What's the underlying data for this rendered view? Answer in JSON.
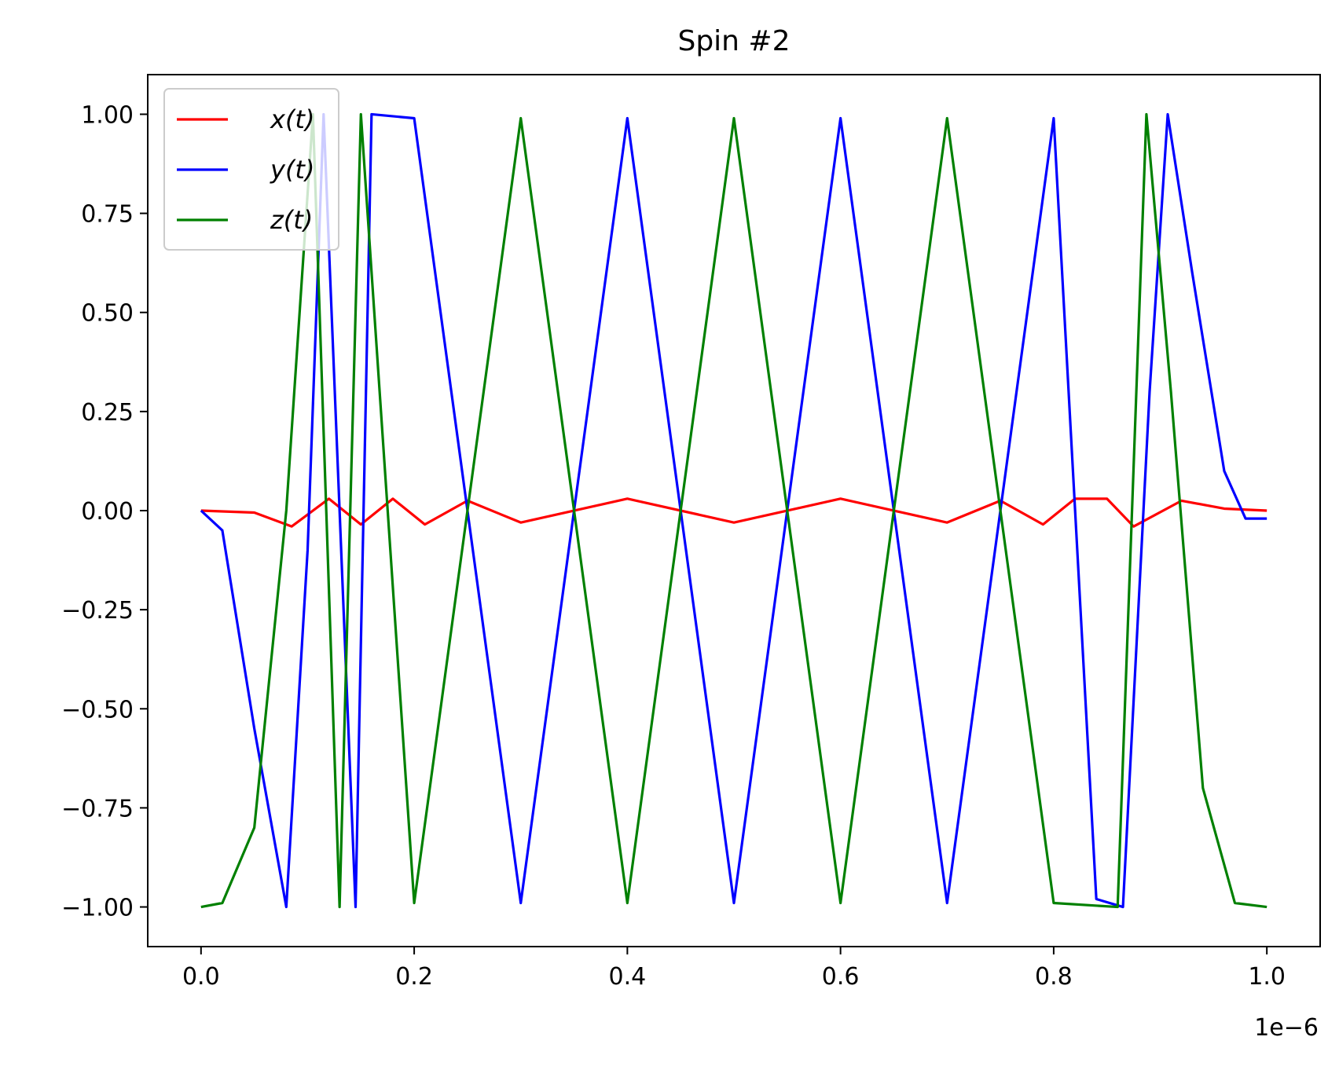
{
  "chart_data": {
    "type": "line",
    "title": "Spin #2",
    "xlabel": "",
    "ylabel": "",
    "x_offset_text": "1e−6",
    "xlim": [
      -0.05,
      1.05
    ],
    "ylim": [
      -1.1,
      1.1
    ],
    "x_ticks": [
      0.0,
      0.2,
      0.4,
      0.6,
      0.8,
      1.0
    ],
    "x_tick_labels": [
      "0.0",
      "0.2",
      "0.4",
      "0.6",
      "0.8",
      "1.0"
    ],
    "y_ticks": [
      1.0,
      0.75,
      0.5,
      0.25,
      0.0,
      -0.25,
      -0.5,
      -0.75,
      -1.0
    ],
    "y_tick_labels": [
      "1.00",
      "0.75",
      "0.50",
      "0.25",
      "0.00",
      "−0.25",
      "−0.50",
      "−0.75",
      "−1.00"
    ],
    "grid": false,
    "legend_position": "top-left",
    "series": [
      {
        "name": "x(t)",
        "color": "#ff0000",
        "x": [
          0.0,
          0.05,
          0.085,
          0.12,
          0.15,
          0.18,
          0.21,
          0.25,
          0.3,
          0.4,
          0.5,
          0.6,
          0.7,
          0.75,
          0.79,
          0.82,
          0.85,
          0.875,
          0.92,
          0.96,
          1.0
        ],
        "values": [
          0.0,
          -0.005,
          -0.04,
          0.03,
          -0.035,
          0.03,
          -0.035,
          0.025,
          -0.03,
          0.03,
          -0.03,
          0.03,
          -0.03,
          0.025,
          -0.035,
          0.03,
          0.03,
          -0.04,
          0.025,
          0.005,
          0.0
        ]
      },
      {
        "name": "y(t)",
        "color": "#0000ff",
        "x": [
          0.0,
          0.02,
          0.05,
          0.08,
          0.1,
          0.115,
          0.13,
          0.145,
          0.16,
          0.2,
          0.3,
          0.4,
          0.5,
          0.6,
          0.7,
          0.8,
          0.84,
          0.865,
          0.89,
          0.907,
          0.93,
          0.96,
          0.98,
          1.0
        ],
        "values": [
          0.0,
          -0.05,
          -0.55,
          -1.0,
          -0.1,
          1.0,
          0.0,
          -1.0,
          1.0,
          0.99,
          -0.99,
          0.99,
          -0.99,
          0.99,
          -0.99,
          0.99,
          -0.98,
          -1.0,
          0.3,
          1.0,
          0.6,
          0.1,
          -0.02,
          -0.02
        ]
      },
      {
        "name": "z(t)",
        "color": "#008000",
        "x": [
          0.0,
          0.02,
          0.05,
          0.08,
          0.105,
          0.13,
          0.15,
          0.2,
          0.3,
          0.4,
          0.5,
          0.6,
          0.7,
          0.8,
          0.86,
          0.887,
          0.91,
          0.94,
          0.97,
          1.0
        ],
        "values": [
          -1.0,
          -0.99,
          -0.8,
          0.0,
          1.0,
          -1.0,
          1.0,
          -0.99,
          0.99,
          -0.99,
          0.99,
          -0.99,
          0.99,
          -0.99,
          -1.0,
          1.0,
          0.3,
          -0.7,
          -0.99,
          -1.0
        ]
      }
    ]
  }
}
